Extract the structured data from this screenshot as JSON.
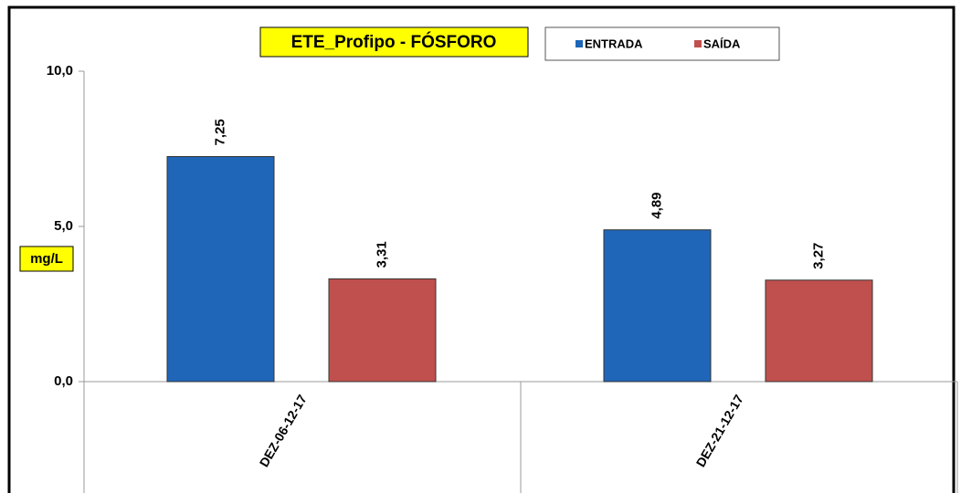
{
  "chart_data": {
    "type": "bar",
    "title": "ETE_Profipo - FÓSFORO",
    "y_label": "mg/L",
    "categories": [
      "DEZ-06-12-17",
      "DEZ-21-12-17"
    ],
    "series": [
      {
        "name": "ENTRADA",
        "color": "#1f66b8",
        "values": [
          7.25,
          4.89
        ],
        "value_labels": [
          "7,25",
          "4,89"
        ]
      },
      {
        "name": "SAÍDA",
        "color": "#c0504d",
        "values": [
          3.31,
          3.27
        ],
        "value_labels": [
          "3,31",
          "3,27"
        ]
      }
    ],
    "ylim": [
      0,
      10
    ],
    "yticks": [
      {
        "value": 0,
        "label": "0,0"
      },
      {
        "value": 5,
        "label": "5,0"
      },
      {
        "value": 10,
        "label": "10,0"
      }
    ],
    "grid": false
  }
}
